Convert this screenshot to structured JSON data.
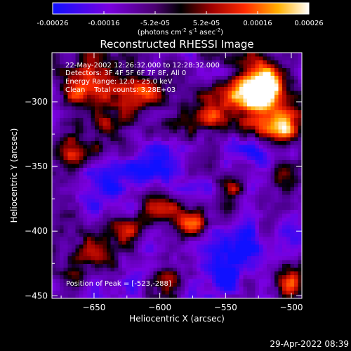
{
  "colorbar": {
    "tick_labels": [
      "-0.00026",
      "-0.00016",
      "-5.2e-05",
      "5.2e-05",
      "0.00016",
      "0.00026"
    ],
    "unit_main": "(photons cm",
    "unit_exp1": "-2",
    "unit_mid": " s",
    "unit_exp2": "-1",
    "unit_end": " asec",
    "unit_exp3": "-2",
    "unit_close": ")"
  },
  "chart_data": {
    "type": "heatmap",
    "title": "Reconstructed RHESSI Image",
    "xlabel": "Heliocentric X (arcsec)",
    "ylabel": "Heliocentric Y (arcsec)",
    "xlim": [
      -682,
      -492
    ],
    "ylim": [
      -452,
      -262
    ],
    "x_ticks": [
      -650,
      -600,
      -550,
      -500
    ],
    "y_ticks": [
      -300,
      -350,
      -400,
      -450
    ],
    "clim": [
      -0.00026,
      0.00026
    ],
    "colormap": "rainbow-black-red-yellow-white",
    "peak": [
      -523,
      -288
    ],
    "annotations": [
      "22-May-2002 12:26:32.000 to 12:28:32.000",
      "Detectors: 3F 4F 5F 6F 7F 8F, All 0",
      "Energy Range: 12.0 - 25.0 keV",
      "Clean    Total counts: 3.28E+03",
      "Position of Peak = [-523,-288]"
    ],
    "grid": false
  },
  "footer": {
    "timestamp": "29-Apr-2022 08:39"
  }
}
